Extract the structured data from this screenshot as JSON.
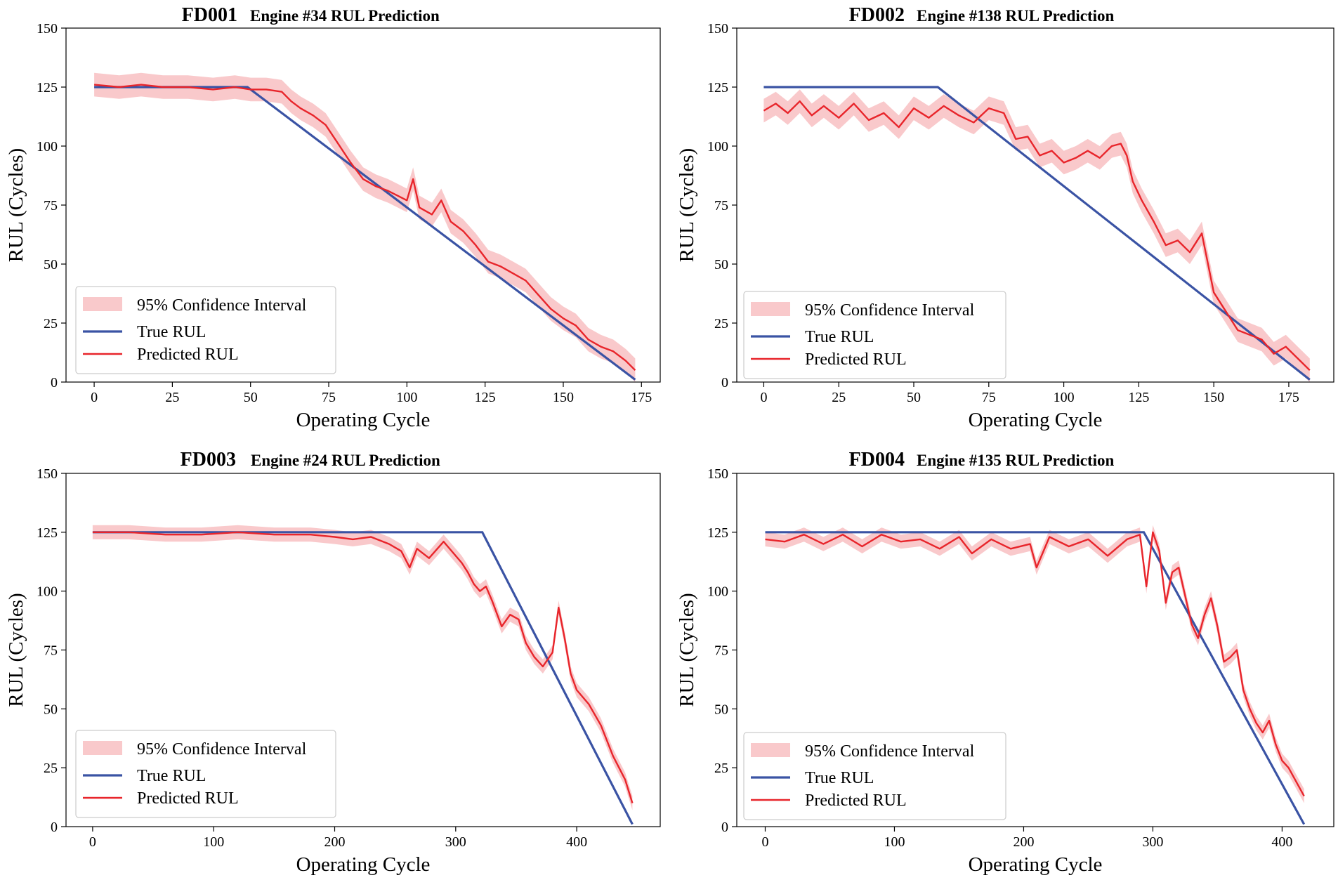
{
  "figure": {
    "legend_labels": [
      "95% Confidence Interval",
      "True RUL",
      "Predicted RUL"
    ],
    "colors": {
      "true_rul": "#3a53a4",
      "predicted_rul": "#e8252b",
      "ci_fill": "#f7b7b9",
      "axes": "#000000"
    }
  },
  "chart_data": [
    {
      "type": "line",
      "panel_id": "FD001",
      "title": "Engine #34 RUL Prediction",
      "xlabel": "Operating Cycle",
      "ylabel": "RUL (Cycles)",
      "xlim": [
        -9,
        181
      ],
      "ylim": [
        0,
        150
      ],
      "xticks": [
        0,
        25,
        50,
        75,
        100,
        125,
        150,
        175
      ],
      "yticks": [
        0,
        25,
        50,
        75,
        100,
        125,
        150
      ],
      "legend_position": "lower-left",
      "series": [
        {
          "name": "True RUL",
          "x": [
            0,
            49,
            173
          ],
          "y": [
            125,
            125,
            1
          ]
        },
        {
          "name": "Predicted RUL",
          "x": [
            0,
            8,
            15,
            22,
            30,
            38,
            45,
            50,
            55,
            60,
            63,
            66,
            70,
            74,
            78,
            82,
            86,
            90,
            94,
            97,
            100,
            102,
            104,
            108,
            111,
            114,
            118,
            122,
            126,
            130,
            134,
            138,
            142,
            146,
            150,
            154,
            158,
            162,
            166,
            170,
            173
          ],
          "y": [
            126,
            125,
            126,
            125,
            125,
            124,
            125,
            124,
            124,
            123,
            119,
            116,
            113,
            109,
            101,
            93,
            86,
            83,
            81,
            79,
            77,
            86,
            74,
            71,
            77,
            68,
            64,
            58,
            51,
            49,
            46,
            43,
            37,
            31,
            27,
            24,
            18,
            15,
            13,
            9,
            5
          ]
        },
        {
          "name": "95% Confidence Interval",
          "half_width": 5
        }
      ]
    },
    {
      "type": "line",
      "panel_id": "FD002",
      "title": "Engine #138 RUL Prediction",
      "xlabel": "Operating Cycle",
      "ylabel": "RUL (Cycles)",
      "xlim": [
        -9,
        190
      ],
      "ylim": [
        0,
        150
      ],
      "xticks": [
        0,
        25,
        50,
        75,
        100,
        125,
        150,
        175
      ],
      "yticks": [
        0,
        25,
        50,
        75,
        100,
        125,
        150
      ],
      "legend_position": "lower-left",
      "series": [
        {
          "name": "True RUL",
          "x": [
            0,
            58,
            182
          ],
          "y": [
            125,
            125,
            1
          ]
        },
        {
          "name": "Predicted RUL",
          "x": [
            0,
            4,
            8,
            12,
            16,
            20,
            25,
            30,
            35,
            40,
            45,
            50,
            55,
            60,
            65,
            70,
            75,
            80,
            84,
            88,
            92,
            96,
            100,
            104,
            108,
            112,
            116,
            119,
            121,
            123,
            126,
            130,
            134,
            138,
            142,
            146,
            150,
            154,
            158,
            162,
            166,
            170,
            174,
            178,
            182
          ],
          "y": [
            115,
            118,
            114,
            119,
            113,
            117,
            112,
            118,
            111,
            114,
            108,
            116,
            112,
            117,
            113,
            110,
            116,
            114,
            103,
            104,
            96,
            98,
            93,
            95,
            98,
            95,
            100,
            101,
            96,
            85,
            77,
            68,
            58,
            60,
            55,
            63,
            38,
            30,
            22,
            20,
            18,
            12,
            15,
            10,
            5
          ]
        },
        {
          "name": "95% Confidence Interval",
          "half_width": 5
        }
      ]
    },
    {
      "type": "line",
      "panel_id": "FD003",
      "title": "Engine #24 RUL Prediction",
      "xlabel": "Operating Cycle",
      "ylabel": "RUL (Cycles)",
      "xlim": [
        -22,
        469
      ],
      "ylim": [
        0,
        150
      ],
      "xticks": [
        0,
        100,
        200,
        300,
        400
      ],
      "yticks": [
        0,
        25,
        50,
        75,
        100,
        125,
        150
      ],
      "legend_position": "lower-left",
      "series": [
        {
          "name": "True RUL",
          "x": [
            0,
            322,
            446
          ],
          "y": [
            125,
            125,
            1
          ]
        },
        {
          "name": "Predicted RUL",
          "x": [
            0,
            30,
            60,
            90,
            120,
            150,
            180,
            200,
            215,
            230,
            245,
            255,
            262,
            268,
            278,
            290,
            300,
            305,
            310,
            315,
            320,
            325,
            330,
            338,
            345,
            352,
            358,
            365,
            372,
            380,
            385,
            390,
            395,
            400,
            410,
            420,
            430,
            440,
            446
          ],
          "y": [
            125,
            125,
            124,
            124,
            125,
            124,
            124,
            123,
            122,
            123,
            120,
            117,
            110,
            118,
            114,
            121,
            115,
            112,
            108,
            103,
            100,
            102,
            96,
            85,
            90,
            88,
            78,
            72,
            68,
            74,
            93,
            80,
            65,
            58,
            52,
            43,
            30,
            20,
            10
          ]
        },
        {
          "name": "95% Confidence Interval",
          "half_width": 3
        }
      ]
    },
    {
      "type": "line",
      "panel_id": "FD004",
      "title": "Engine #135 RUL Prediction",
      "xlabel": "Operating Cycle",
      "ylabel": "RUL (Cycles)",
      "xlim": [
        -22,
        440
      ],
      "ylim": [
        0,
        150
      ],
      "xticks": [
        0,
        100,
        200,
        300,
        400
      ],
      "yticks": [
        0,
        25,
        50,
        75,
        100,
        125,
        150
      ],
      "legend_position": "lower-left",
      "series": [
        {
          "name": "True RUL",
          "x": [
            0,
            293,
            417
          ],
          "y": [
            125,
            125,
            1
          ]
        },
        {
          "name": "Predicted RUL",
          "x": [
            0,
            15,
            30,
            45,
            60,
            75,
            90,
            105,
            120,
            135,
            150,
            160,
            175,
            190,
            205,
            210,
            220,
            235,
            250,
            265,
            280,
            290,
            295,
            300,
            305,
            310,
            315,
            320,
            325,
            330,
            335,
            340,
            345,
            350,
            355,
            360,
            365,
            370,
            375,
            380,
            385,
            390,
            395,
            400,
            405,
            410,
            417
          ],
          "y": [
            122,
            121,
            124,
            120,
            124,
            119,
            124,
            121,
            122,
            118,
            123,
            116,
            122,
            118,
            120,
            110,
            123,
            119,
            122,
            115,
            122,
            124,
            102,
            125,
            117,
            95,
            108,
            110,
            98,
            86,
            80,
            90,
            97,
            85,
            70,
            72,
            75,
            58,
            50,
            44,
            40,
            45,
            35,
            28,
            25,
            20,
            13
          ]
        },
        {
          "name": "95% Confidence Interval",
          "half_width": 3
        }
      ]
    }
  ]
}
